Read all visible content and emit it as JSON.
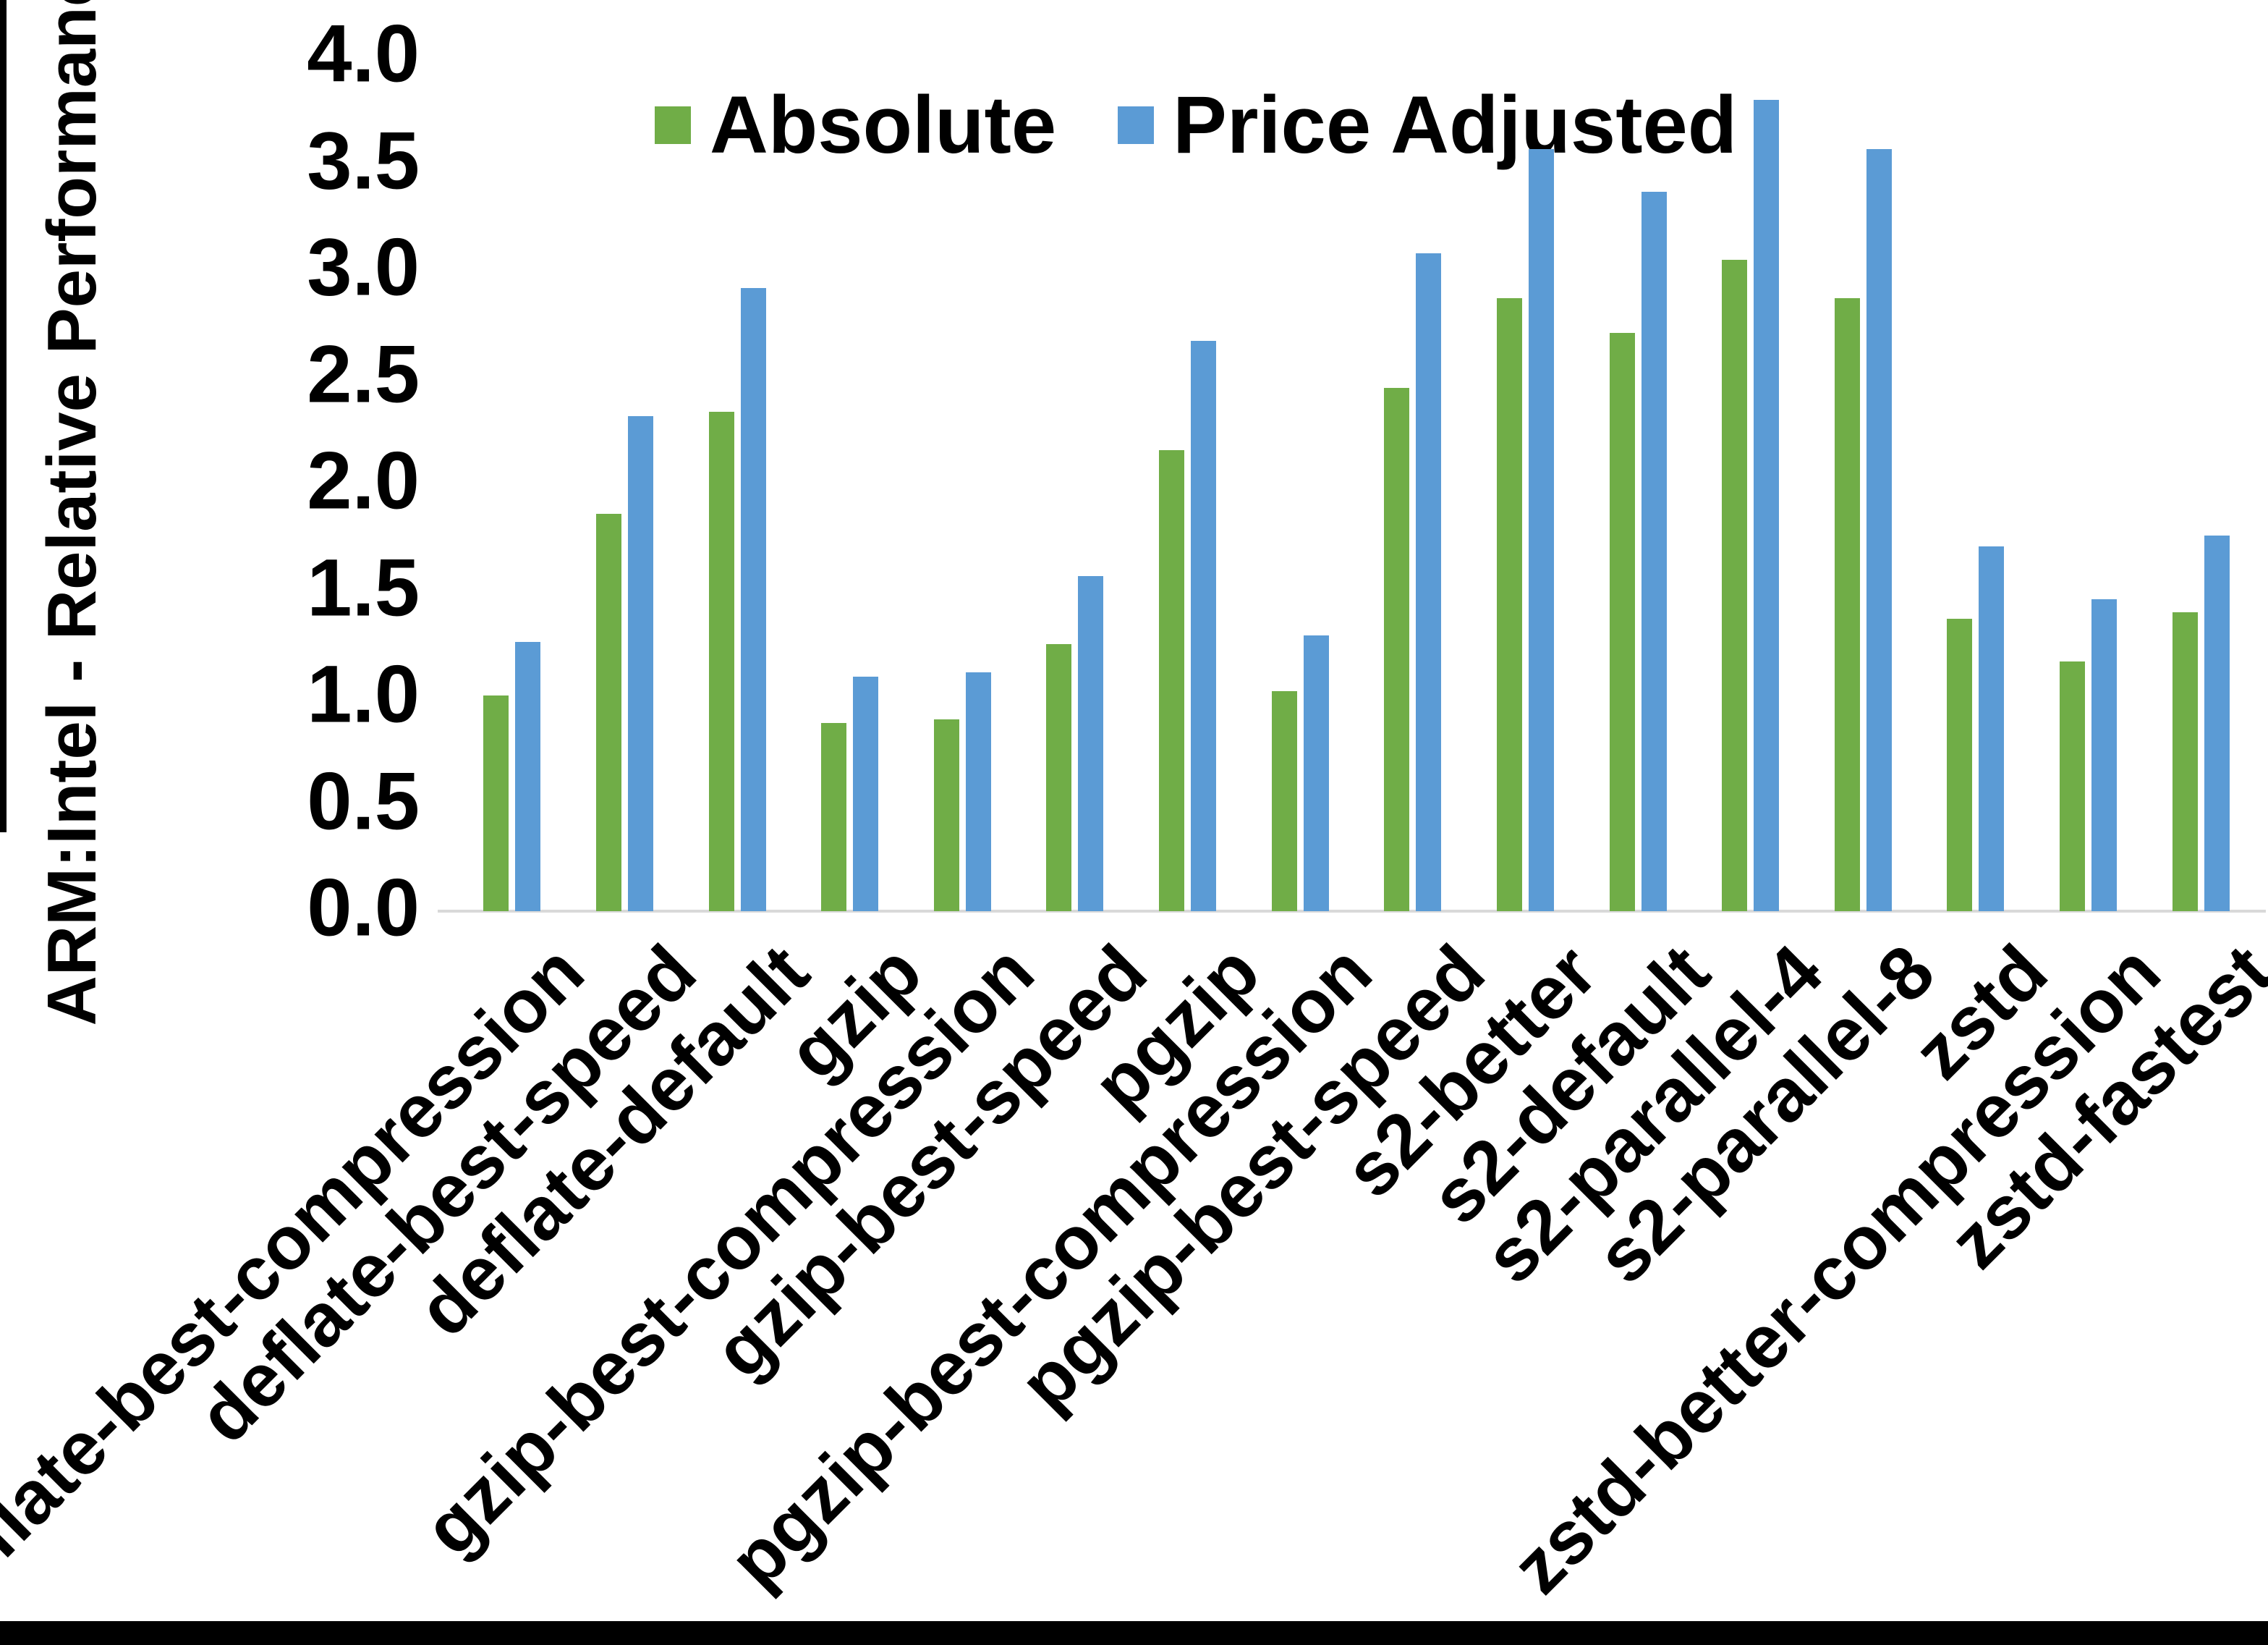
{
  "figure": {
    "background": "#ffffff",
    "frame_color": "#000000"
  },
  "chart_data": {
    "type": "bar",
    "title": "",
    "xlabel": "",
    "ylabel": "ARM:Intel - Relative Performance",
    "ylim": [
      0.0,
      4.0
    ],
    "ytick_step": 0.5,
    "yticks": [
      "0.0",
      "0.5",
      "1.0",
      "1.5",
      "2.0",
      "2.5",
      "3.0",
      "3.5",
      "4.0"
    ],
    "grid": false,
    "legend_position": "top-center",
    "axis_line_color": "#D9D9D9",
    "categories": [
      "deflate-best-compression",
      "deflate-best-speed",
      "deflate-default",
      "gzip",
      "gzip-best-compression",
      "gzip-best-speed",
      "pgzip",
      "pgzip-best-compression",
      "pgzip-best-speed",
      "s2-better",
      "s2-default",
      "s2-parallel-4",
      "s2-parallel-8",
      "zstd",
      "zstd-better-compression",
      "zstd-fastest"
    ],
    "series": [
      {
        "name": "Absolute",
        "color": "#70AD47",
        "values": [
          1.01,
          1.86,
          2.34,
          0.88,
          0.9,
          1.25,
          2.16,
          1.03,
          2.45,
          2.87,
          2.71,
          3.05,
          2.87,
          1.37,
          1.17,
          1.4
        ]
      },
      {
        "name": "Price Adjusted",
        "color": "#5B9BD5",
        "values": [
          1.26,
          2.32,
          2.92,
          1.1,
          1.12,
          1.57,
          2.67,
          1.29,
          3.08,
          3.57,
          3.37,
          3.8,
          3.57,
          1.71,
          1.46,
          1.76
        ]
      }
    ]
  }
}
